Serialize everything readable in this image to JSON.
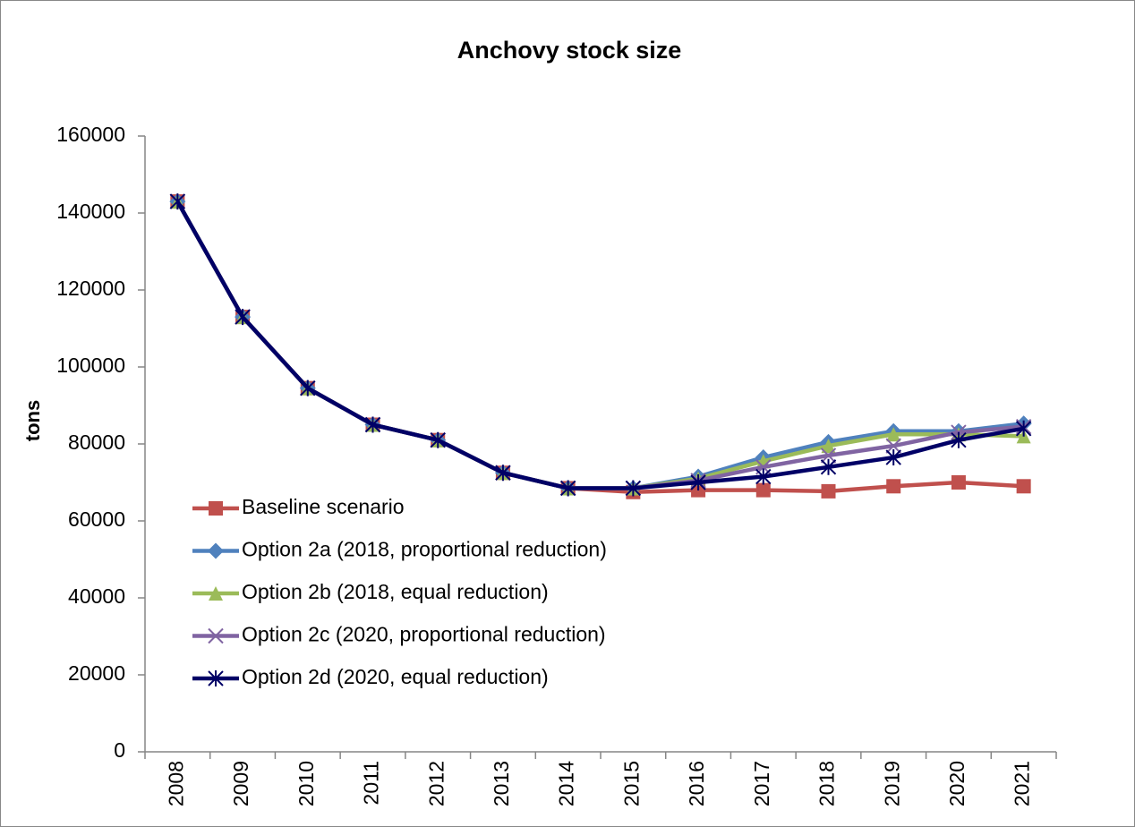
{
  "chart_data": {
    "type": "line",
    "title": "Anchovy stock size",
    "y_label": "tons",
    "categories": [
      "2008",
      "2009",
      "2010",
      "2011",
      "2012",
      "2013",
      "2014",
      "2015",
      "2016",
      "2017",
      "2018",
      "2019",
      "2020",
      "2021"
    ],
    "series": [
      {
        "name": "Baseline scenario",
        "color": "#c0504d",
        "marker": "square",
        "values": [
          143000,
          113000,
          94500,
          85000,
          81000,
          72500,
          68500,
          67500,
          68000,
          68000,
          67700,
          69000,
          70000,
          69000
        ]
      },
      {
        "name": "Option 2a (2018, proportional reduction)",
        "color": "#4f81bd",
        "marker": "diamond",
        "values": [
          143000,
          113000,
          94500,
          85000,
          81000,
          72500,
          68500,
          68500,
          71500,
          76500,
          80500,
          83300,
          83300,
          85300
        ]
      },
      {
        "name": "Option 2b (2018, equal reduction)",
        "color": "#9bbb59",
        "marker": "triangle",
        "values": [
          143000,
          113000,
          94500,
          85000,
          81000,
          72500,
          68500,
          68500,
          71000,
          75500,
          79500,
          82500,
          82500,
          82000
        ]
      },
      {
        "name": "Option 2c (2020, proportional reduction)",
        "color": "#8064a2",
        "marker": "x",
        "values": [
          143000,
          113000,
          94500,
          85000,
          81000,
          72500,
          68500,
          68500,
          70500,
          74000,
          77000,
          79500,
          83000,
          84500
        ]
      },
      {
        "name": "Option 2d (2020, equal reduction)",
        "color": "#000066",
        "marker": "star",
        "values": [
          143000,
          113000,
          94500,
          85000,
          81000,
          72500,
          68500,
          68500,
          70000,
          71500,
          74000,
          76500,
          81000,
          84000
        ]
      }
    ],
    "ylim": [
      0,
      160000
    ],
    "yticks": [
      0,
      20000,
      40000,
      60000,
      80000,
      100000,
      120000,
      140000,
      160000
    ],
    "legend": "center left",
    "grid": false
  }
}
